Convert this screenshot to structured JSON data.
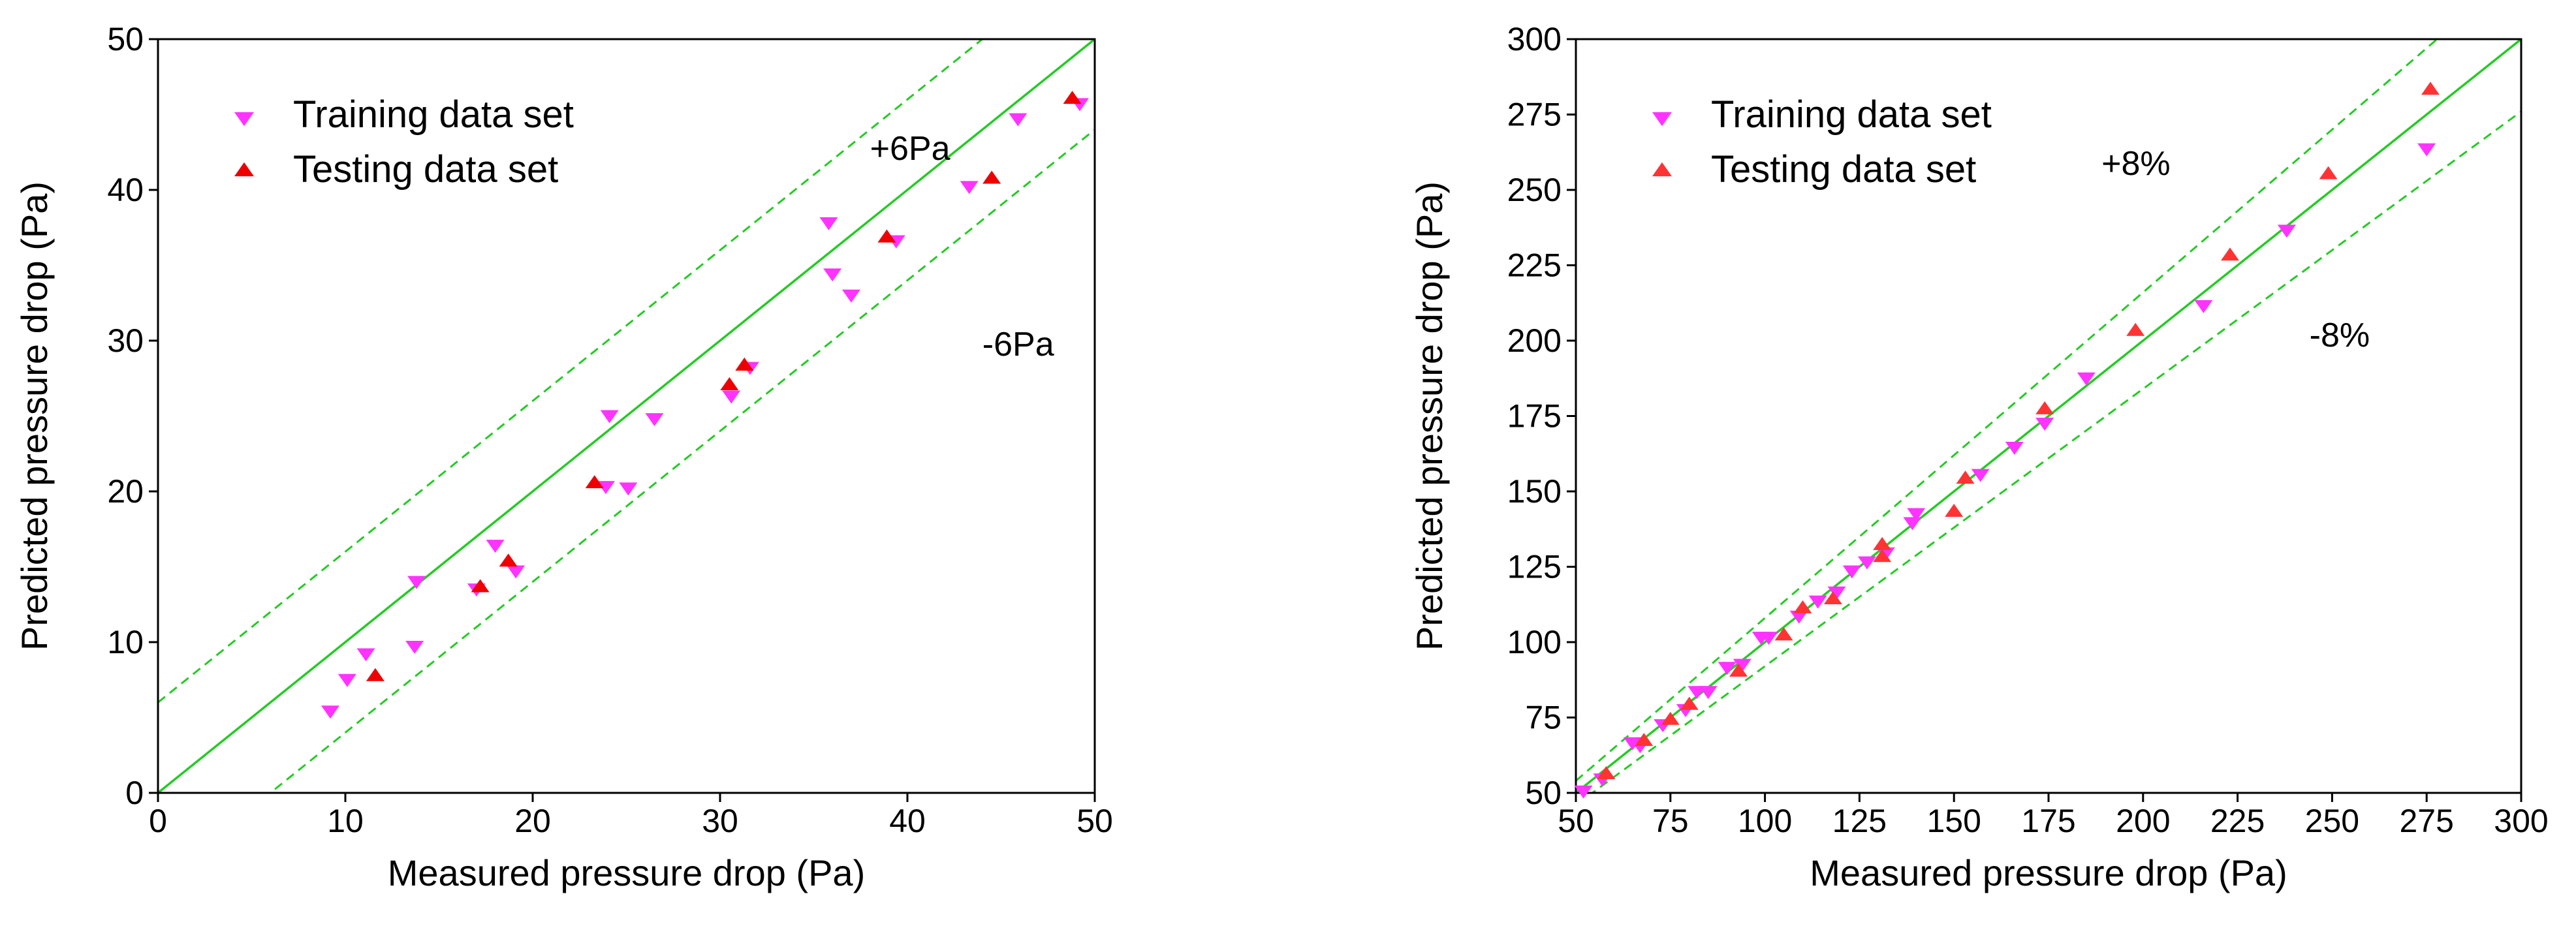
{
  "chart_data": [
    {
      "type": "scatter",
      "xlabel": "Measured pressure drop (Pa)",
      "ylabel": "Predicted pressure drop (Pa)",
      "xlim": [
        0,
        50
      ],
      "ylim": [
        0,
        50
      ],
      "xticks": [
        0,
        10,
        20,
        30,
        40,
        50
      ],
      "yticks": [
        0,
        10,
        20,
        30,
        40,
        50
      ],
      "legend_position": "top-left",
      "reference_lines": {
        "diagonal": "y = x",
        "band_type": "absolute",
        "band": 6,
        "upper_label": "+6Pa",
        "lower_label": "-6Pa",
        "upper_label_at": [
          38,
          42
        ],
        "lower_label_at": [
          44,
          29
        ]
      },
      "series": [
        {
          "name": "Training data set",
          "marker": "triangle-down",
          "color": "#ff33ff",
          "points": [
            [
              9.2,
              5.5
            ],
            [
              10.1,
              7.6
            ],
            [
              11.1,
              9.3
            ],
            [
              13.7,
              9.8
            ],
            [
              13.8,
              14.1
            ],
            [
              18.0,
              16.5
            ],
            [
              19.1,
              14.8
            ],
            [
              17.0,
              13.6
            ],
            [
              23.9,
              20.4
            ],
            [
              25.1,
              20.3
            ],
            [
              24.1,
              25.1
            ],
            [
              26.5,
              24.9
            ],
            [
              30.6,
              26.4
            ],
            [
              31.6,
              28.3
            ],
            [
              35.8,
              37.9
            ],
            [
              36.0,
              34.5
            ],
            [
              37.0,
              33.1
            ],
            [
              39.4,
              36.7
            ],
            [
              43.3,
              40.3
            ],
            [
              45.9,
              44.8
            ],
            [
              49.2,
              45.8
            ]
          ]
        },
        {
          "name": "Testing data set",
          "marker": "triangle-up",
          "color": "#ee0000",
          "points": [
            [
              11.6,
              7.7
            ],
            [
              17.2,
              13.6
            ],
            [
              18.7,
              15.3
            ],
            [
              23.3,
              20.5
            ],
            [
              30.5,
              27.0
            ],
            [
              31.3,
              28.3
            ],
            [
              38.9,
              36.8
            ],
            [
              44.5,
              40.7
            ],
            [
              48.8,
              46.0
            ]
          ]
        }
      ]
    },
    {
      "type": "scatter",
      "xlabel": "Measured pressure drop (Pa)",
      "ylabel": "Predicted pressure drop (Pa)",
      "xlim": [
        50,
        300
      ],
      "ylim": [
        50,
        300
      ],
      "xticks": [
        50,
        75,
        100,
        125,
        150,
        175,
        200,
        225,
        250,
        275,
        300
      ],
      "yticks": [
        50,
        75,
        100,
        125,
        150,
        175,
        200,
        225,
        250,
        275,
        300
      ],
      "legend_position": "top-left",
      "reference_lines": {
        "diagonal": "y = x",
        "band_type": "percent",
        "band": 8,
        "upper_label": "+8%",
        "lower_label": "-8%",
        "upper_label_at": [
          189,
          255
        ],
        "lower_label_at": [
          244,
          198
        ]
      },
      "series": [
        {
          "name": "Training data set",
          "marker": "triangle-down",
          "color": "#ff33ff",
          "points": [
            [
              52,
              51
            ],
            [
              57,
              55
            ],
            [
              65,
              67
            ],
            [
              67,
              66
            ],
            [
              73,
              73
            ],
            [
              79,
              78
            ],
            [
              82,
              84
            ],
            [
              85,
              84
            ],
            [
              90,
              92
            ],
            [
              94,
              93
            ],
            [
              99,
              102
            ],
            [
              101,
              102
            ],
            [
              109,
              109
            ],
            [
              114,
              114
            ],
            [
              119,
              117
            ],
            [
              123,
              124
            ],
            [
              127,
              127
            ],
            [
              132,
              130
            ],
            [
              139,
              140
            ],
            [
              140,
              143
            ],
            [
              157,
              156
            ],
            [
              166,
              165
            ],
            [
              174,
              173
            ],
            [
              185,
              188
            ],
            [
              216,
              212
            ],
            [
              238,
              237
            ],
            [
              275,
              264
            ]
          ]
        },
        {
          "name": "Testing data set",
          "marker": "triangle-up",
          "color": "#ff3333",
          "points": [
            [
              58,
              56
            ],
            [
              68,
              67
            ],
            [
              75,
              74
            ],
            [
              80,
              79
            ],
            [
              93,
              90
            ],
            [
              105,
              102
            ],
            [
              110,
              111
            ],
            [
              118,
              114
            ],
            [
              131,
              128
            ],
            [
              131,
              132
            ],
            [
              150,
              143
            ],
            [
              153,
              154
            ],
            [
              174,
              177
            ],
            [
              198,
              203
            ],
            [
              223,
              228
            ],
            [
              249,
              255
            ],
            [
              276,
              283
            ]
          ]
        }
      ]
    }
  ]
}
